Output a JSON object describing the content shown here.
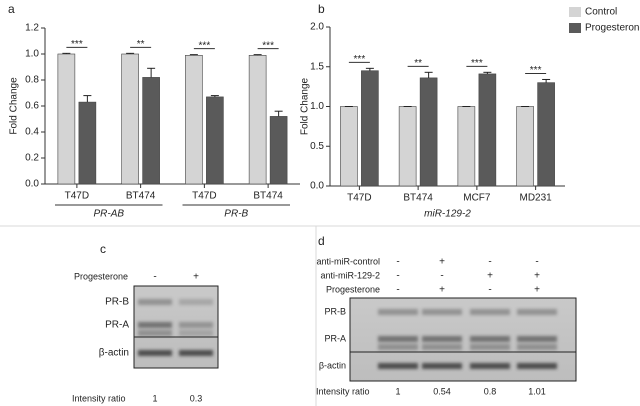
{
  "chart_data": [
    {
      "type": "bar",
      "label": "a",
      "ylabel": "Fold Change",
      "categories": [
        "T47D",
        "BT474",
        "T47D",
        "BT474"
      ],
      "group_labels": [
        "PR-AB",
        "PR-B"
      ],
      "annotations": [
        "***",
        "**",
        "***",
        "***"
      ],
      "series": [
        {
          "color": "#d4d4d4",
          "values": [
            1.0,
            1.0,
            0.99,
            0.99
          ],
          "errors": [
            0.005,
            0.005,
            0.005,
            0.005
          ]
        },
        {
          "color": "#5a5a5a",
          "values": [
            0.63,
            0.82,
            0.67,
            0.52
          ],
          "errors": [
            0.05,
            0.07,
            0.01,
            0.04
          ]
        }
      ],
      "ylim": [
        0,
        1.2
      ],
      "yticks": [
        {
          "value": 0,
          "label": "0.0"
        },
        0.2,
        0.4,
        0.6,
        0.8,
        {
          "value": 1,
          "label": "1.0"
        },
        1.2
      ]
    },
    {
      "type": "bar",
      "label": "b",
      "ylabel": "Fold Change",
      "xlabel": "miR-129-2",
      "categories": [
        "T47D",
        "BT474",
        "MCF7",
        "MD231"
      ],
      "annotations": [
        "***",
        "**",
        "***",
        "***"
      ],
      "series": [
        {
          "name": "Control",
          "color": "#d4d4d4",
          "values": [
            1.0,
            1.0,
            1.0,
            1.0
          ],
          "errors": [
            0,
            0,
            0,
            0
          ]
        },
        {
          "name": "Progesterone",
          "color": "#5a5a5a",
          "values": [
            1.45,
            1.36,
            1.41,
            1.3
          ],
          "errors": [
            0.03,
            0.07,
            0.02,
            0.04
          ]
        }
      ],
      "legend": "top-right",
      "ylim": [
        0,
        2
      ],
      "yticks": [
        {
          "value": 0,
          "label": "0.0"
        },
        0.5,
        {
          "value": 1,
          "label": "1.0"
        },
        1.5,
        {
          "value": 2,
          "label": "2.0"
        }
      ]
    }
  ],
  "blots": [
    {
      "label": "c",
      "treatments": [
        {
          "name": "Progesterone",
          "signs": [
            "-",
            "+"
          ]
        }
      ],
      "bands": [
        "PR-B",
        "PR-A",
        "β-actin"
      ],
      "ratio_label": "Intensity ratio",
      "ratios": [
        1,
        0.3
      ]
    },
    {
      "label": "d",
      "treatments": [
        {
          "name": "anti-miR-control",
          "signs": [
            "-",
            "+",
            "-",
            "-"
          ]
        },
        {
          "name": "anti-miR-129-2",
          "signs": [
            "-",
            "-",
            "+",
            "+"
          ]
        },
        {
          "name": "Progesterone",
          "signs": [
            "-",
            "+",
            "-",
            "+"
          ]
        }
      ],
      "bands": [
        "PR-B",
        "PR-A",
        "β-actin"
      ],
      "ratio_label": "Intensity ratio",
      "ratios": [
        1,
        0.54,
        0.8,
        1.01
      ]
    }
  ]
}
